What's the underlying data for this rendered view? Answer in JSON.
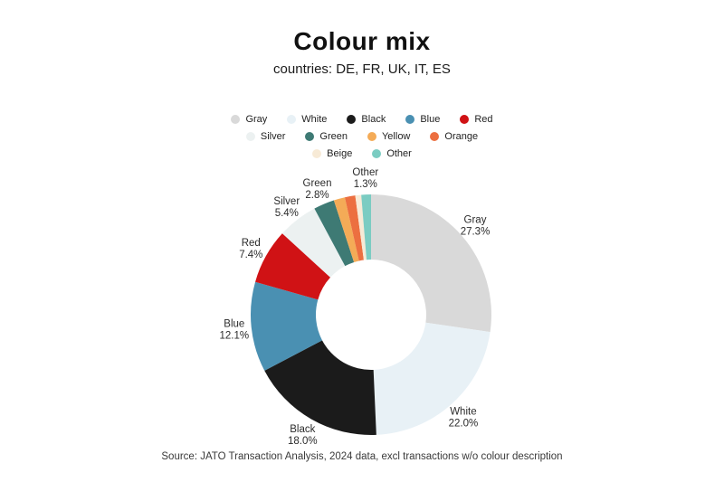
{
  "header": {
    "title": "Colour mix",
    "subtitle": "countries: DE, FR, UK, IT, ES"
  },
  "source_note": "Source: JATO Transaction Analysis, 2024 data, excl transactions w/o colour description",
  "chart_data": {
    "type": "pie",
    "variant": "donut",
    "title": "Colour mix",
    "subtitle": "countries: DE, FR, UK, IT, ES",
    "start_angle_deg": 0,
    "direction": "clockwise",
    "legend_position": "top",
    "legend_rows": [
      [
        "Gray",
        "White",
        "Black",
        "Blue",
        "Red"
      ],
      [
        "Silver",
        "Green",
        "Yellow",
        "Orange"
      ],
      [
        "Beige",
        "Other"
      ]
    ],
    "slices": [
      {
        "label": "Gray",
        "value": 27.3,
        "color": "#d9d9d9",
        "show_label": true
      },
      {
        "label": "White",
        "value": 22.0,
        "color": "#e8f1f6",
        "show_label": true
      },
      {
        "label": "Black",
        "value": 18.0,
        "color": "#1b1b1b",
        "show_label": true
      },
      {
        "label": "Blue",
        "value": 12.1,
        "color": "#4a90b2",
        "show_label": true
      },
      {
        "label": "Red",
        "value": 7.4,
        "color": "#d01215",
        "show_label": true
      },
      {
        "label": "Silver",
        "value": 5.4,
        "color": "#ecf1f1",
        "show_label": true
      },
      {
        "label": "Green",
        "value": 2.8,
        "color": "#3e7a74",
        "show_label": true
      },
      {
        "label": "Yellow",
        "value": 1.5,
        "color": "#f4ab57",
        "show_label": false,
        "estimated": true
      },
      {
        "label": "Orange",
        "value": 1.4,
        "color": "#ec6f40",
        "show_label": false,
        "estimated": true
      },
      {
        "label": "Beige",
        "value": 0.8,
        "color": "#f7ead6",
        "show_label": false,
        "estimated": true
      },
      {
        "label": "Other",
        "value": 1.3,
        "color": "#7bccc2",
        "show_label": true
      }
    ],
    "label_format": "name + percent, e.g. Gray 27.3%"
  }
}
